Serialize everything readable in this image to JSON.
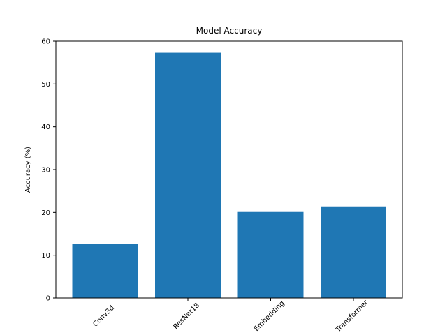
{
  "chart_data": {
    "type": "bar",
    "title": "Model Accuracy",
    "xlabel": "",
    "ylabel": "Accuracy (%)",
    "categories": [
      "Conv3d",
      "ResNet18",
      "Embedding",
      "Transformer"
    ],
    "values": [
      12.7,
      57.3,
      20.1,
      21.4
    ],
    "ylim": [
      0,
      60
    ],
    "yticks": [
      0,
      10,
      20,
      30,
      40,
      50,
      60
    ],
    "grid": false,
    "bar_color": "#1f77b4"
  }
}
